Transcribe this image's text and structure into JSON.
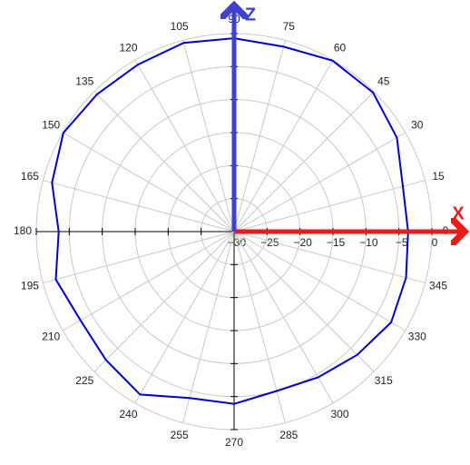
{
  "chart_data": {
    "type": "polar",
    "theta": [
      0,
      15,
      30,
      45,
      60,
      75,
      90,
      105,
      120,
      135,
      150,
      165,
      180,
      195,
      210,
      225,
      240,
      255,
      270,
      285,
      300,
      315,
      330,
      345
    ],
    "series": [
      {
        "color": "#0000cc",
        "values": [
          -3.6,
          -3.5,
          -1.5,
          -0.2,
          -0.1,
          -1,
          -0.7,
          -0.4,
          -0.8,
          -0.6,
          -0.1,
          -1.4,
          -3.4,
          -2,
          -3.1,
          -2.5,
          -1.5,
          -3.9,
          -3.9,
          -5,
          -4.5,
          -3.6,
          -2.5,
          -3
        ]
      }
    ],
    "angle_ticks": [
      0,
      15,
      30,
      45,
      60,
      75,
      90,
      105,
      120,
      135,
      150,
      165,
      180,
      195,
      210,
      225,
      240,
      255,
      270,
      285,
      300,
      315,
      330,
      345
    ],
    "rlim": [
      -30,
      0
    ],
    "rticks": [
      {
        "value": -30,
        "label": "−30"
      },
      {
        "value": -25,
        "label": "−25"
      },
      {
        "value": -20,
        "label": "−20"
      },
      {
        "value": -15,
        "label": "−15"
      },
      {
        "value": -10,
        "label": "−10"
      },
      {
        "value": -5,
        "label": "−5"
      },
      0
    ],
    "x_axis_label": "X",
    "z_axis_label": "Z",
    "x_axis_color": "#e81c1c",
    "z_axis_color": "#4040d0",
    "grid": true
  }
}
